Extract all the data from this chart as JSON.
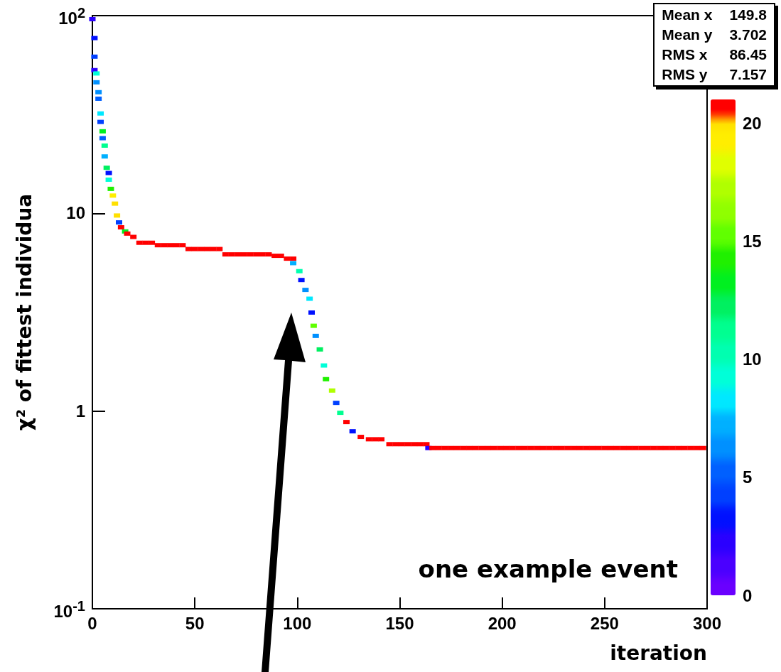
{
  "chart_data": {
    "type": "scatter",
    "xlabel": "iteration",
    "ylabel": "χ² of fittest individua",
    "log": "y",
    "xlim": [
      0,
      300
    ],
    "xticks": [
      0,
      50,
      100,
      150,
      200,
      250,
      300
    ],
    "ylim": [
      0.1,
      100
    ],
    "yticks": [
      {
        "value": 0.1,
        "label": "10$^{-1}$"
      },
      1,
      10,
      {
        "value": 100,
        "label": "10$^{2}$"
      }
    ],
    "clim": [
      0,
      21
    ],
    "cticks": [
      0,
      5,
      10,
      15,
      20
    ],
    "marker": "square",
    "grid": false,
    "annotations": [
      "one example event",
      "Mean x 149.8",
      "Mean y 3.702",
      "RMS x 86.45",
      "RMS y 7.157"
    ],
    "x": [
      0,
      1,
      1,
      1,
      2,
      2,
      3,
      3,
      4,
      4,
      5,
      5,
      6,
      6,
      7,
      8,
      8,
      9,
      10,
      11,
      12,
      13,
      14,
      16,
      17,
      20,
      23,
      26,
      29,
      32,
      35,
      38,
      41,
      44,
      47,
      50,
      53,
      56,
      59,
      62,
      65,
      68,
      71,
      74,
      77,
      80,
      83,
      86,
      89,
      92,
      95,
      98,
      98,
      101,
      102,
      104,
      106,
      107,
      108,
      109,
      111,
      113,
      114,
      117,
      119,
      121,
      124,
      127,
      131,
      135,
      138,
      141,
      145,
      148,
      151,
      154,
      157,
      160,
      163,
      164,
      166,
      169,
      172,
      175,
      178,
      181,
      184,
      187,
      190,
      193,
      196,
      199,
      202,
      205,
      208,
      211,
      214,
      217,
      220,
      223,
      226,
      229,
      232,
      235,
      238,
      241,
      244,
      247,
      250,
      253,
      256,
      259,
      262,
      265,
      268,
      271,
      274,
      277,
      280,
      283,
      286,
      289,
      292,
      295,
      298
    ],
    "values": [
      96,
      77,
      62,
      53,
      51,
      46,
      41,
      38,
      32,
      29,
      26,
      24,
      22,
      19.4,
      17,
      16,
      14.8,
      13.3,
      12.3,
      11.2,
      9.75,
      9,
      8.5,
      8.1,
      7.9,
      7.6,
      7.1,
      7.1,
      7.1,
      6.9,
      6.9,
      6.9,
      6.9,
      6.9,
      6.6,
      6.6,
      6.6,
      6.6,
      6.6,
      6.6,
      6.2,
      6.2,
      6.2,
      6.2,
      6.2,
      6.2,
      6.2,
      6.2,
      6.1,
      6.1,
      5.9,
      5.9,
      5.6,
      5.1,
      4.6,
      4.1,
      3.7,
      3.15,
      2.7,
      2.4,
      2.05,
      1.7,
      1.45,
      1.27,
      1.1,
      0.98,
      0.88,
      0.79,
      0.74,
      0.72,
      0.72,
      0.72,
      0.68,
      0.68,
      0.68,
      0.68,
      0.68,
      0.68,
      0.68,
      0.65,
      0.65,
      0.65,
      0.65,
      0.65,
      0.65,
      0.65,
      0.65,
      0.65,
      0.65,
      0.65,
      0.65,
      0.65,
      0.65,
      0.65,
      0.65,
      0.65,
      0.65,
      0.65,
      0.65,
      0.65,
      0.65,
      0.65,
      0.65,
      0.65,
      0.65,
      0.65,
      0.65,
      0.65,
      0.65,
      0.65,
      0.65,
      0.65,
      0.65,
      0.65,
      0.65,
      0.65,
      0.65,
      0.65,
      0.65,
      0.65,
      0.65,
      0.65,
      0.65,
      0.65,
      0.65
    ],
    "cvalues": [
      2,
      3,
      4,
      2,
      9,
      6,
      6,
      5,
      8,
      4,
      13,
      5,
      11,
      7,
      12,
      3,
      9,
      14,
      19,
      20,
      20,
      4,
      21,
      13,
      21,
      21,
      21,
      21,
      21,
      21,
      21,
      21,
      21,
      21,
      21,
      21,
      21,
      21,
      21,
      21,
      21,
      21,
      21,
      21,
      21,
      21,
      21,
      21,
      21,
      21,
      21,
      21,
      7,
      10,
      3,
      6,
      8,
      3,
      15,
      6,
      12,
      9,
      14,
      17,
      4,
      11,
      21,
      3,
      21,
      21,
      21,
      21,
      21,
      21,
      21,
      21,
      21,
      21,
      21,
      2,
      21,
      21,
      21,
      21,
      21,
      21,
      21,
      21,
      21,
      21,
      21,
      21,
      21,
      21,
      21,
      21,
      21,
      21,
      21,
      21,
      21,
      21,
      21,
      21,
      21,
      21,
      21,
      21,
      21,
      21,
      21,
      21,
      21,
      21,
      21,
      21,
      21,
      21,
      21,
      21,
      21,
      21,
      21,
      21,
      21
    ]
  }
}
